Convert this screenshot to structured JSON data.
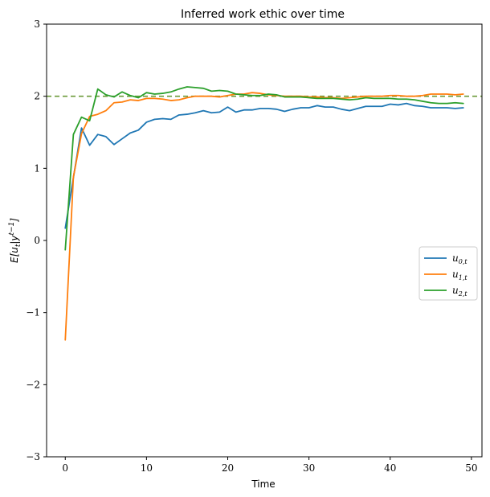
{
  "chart_data": {
    "type": "line",
    "title": "Inferred work ethic over time",
    "xlabel": "Time",
    "ylabel": "E[u_t | y^(t-1)]",
    "ylabel_parts": {
      "base": "E[u",
      "sub": "t",
      "mid": "|y",
      "sup": "t−1",
      "end": "]"
    },
    "xlim": [
      -2.3,
      51.3
    ],
    "ylim": [
      -3,
      3
    ],
    "xticks": [
      0,
      10,
      20,
      30,
      40,
      50
    ],
    "yticks": [
      -3,
      -2,
      -1,
      0,
      1,
      2
    ],
    "ytick_labels": [
      "−3",
      "−2",
      "−1",
      "0",
      "1",
      "2"
    ],
    "top_tick_label": "3",
    "grid": false,
    "legend_placement": "center-right",
    "reference_line": {
      "y": 2.0,
      "style": "dashed",
      "color": "#6b9a3a"
    },
    "x": [
      0,
      1,
      2,
      3,
      4,
      5,
      6,
      7,
      8,
      9,
      10,
      11,
      12,
      13,
      14,
      15,
      16,
      17,
      18,
      19,
      20,
      21,
      22,
      23,
      24,
      25,
      26,
      27,
      28,
      29,
      30,
      31,
      32,
      33,
      34,
      35,
      36,
      37,
      38,
      39,
      40,
      41,
      42,
      43,
      44,
      45,
      46,
      47,
      48,
      49
    ],
    "series": [
      {
        "name": "u_{0,t}",
        "label_base": "u",
        "label_sub": "0,t",
        "color": "#1f77b4",
        "values": [
          0.17,
          0.87,
          1.56,
          1.32,
          1.47,
          1.44,
          1.33,
          1.41,
          1.49,
          1.53,
          1.64,
          1.68,
          1.69,
          1.68,
          1.74,
          1.75,
          1.77,
          1.8,
          1.77,
          1.78,
          1.85,
          1.78,
          1.81,
          1.81,
          1.83,
          1.83,
          1.82,
          1.79,
          1.82,
          1.84,
          1.84,
          1.87,
          1.85,
          1.85,
          1.82,
          1.8,
          1.83,
          1.86,
          1.86,
          1.86,
          1.89,
          1.88,
          1.9,
          1.87,
          1.86,
          1.84,
          1.84,
          1.84,
          1.83,
          1.84
        ]
      },
      {
        "name": "u_{1,t}",
        "label_base": "u",
        "label_sub": "1,t",
        "color": "#ff7f0e",
        "values": [
          -1.38,
          0.88,
          1.48,
          1.72,
          1.75,
          1.8,
          1.91,
          1.92,
          1.95,
          1.94,
          1.97,
          1.97,
          1.96,
          1.94,
          1.95,
          1.98,
          2.0,
          2.0,
          2.0,
          1.99,
          2.01,
          2.03,
          2.03,
          2.05,
          2.04,
          2.02,
          2.01,
          2.0,
          2.0,
          2.0,
          1.99,
          1.99,
          1.98,
          1.98,
          1.97,
          1.98,
          1.99,
          2.0,
          2.0,
          2.0,
          2.01,
          2.01,
          2.0,
          2.0,
          2.01,
          2.03,
          2.03,
          2.03,
          2.02,
          2.03
        ]
      },
      {
        "name": "u_{2,t}",
        "label_base": "u",
        "label_sub": "2,t",
        "color": "#2ca02c",
        "values": [
          -0.13,
          1.47,
          1.71,
          1.66,
          2.1,
          2.02,
          1.99,
          2.06,
          2.01,
          1.98,
          2.05,
          2.03,
          2.04,
          2.06,
          2.1,
          2.13,
          2.12,
          2.11,
          2.07,
          2.08,
          2.07,
          2.03,
          2.02,
          2.01,
          2.01,
          2.03,
          2.02,
          1.99,
          1.99,
          1.99,
          1.98,
          1.97,
          1.97,
          1.97,
          1.96,
          1.95,
          1.96,
          1.98,
          1.97,
          1.97,
          1.97,
          1.96,
          1.96,
          1.95,
          1.93,
          1.91,
          1.9,
          1.9,
          1.91,
          1.9
        ]
      }
    ]
  }
}
